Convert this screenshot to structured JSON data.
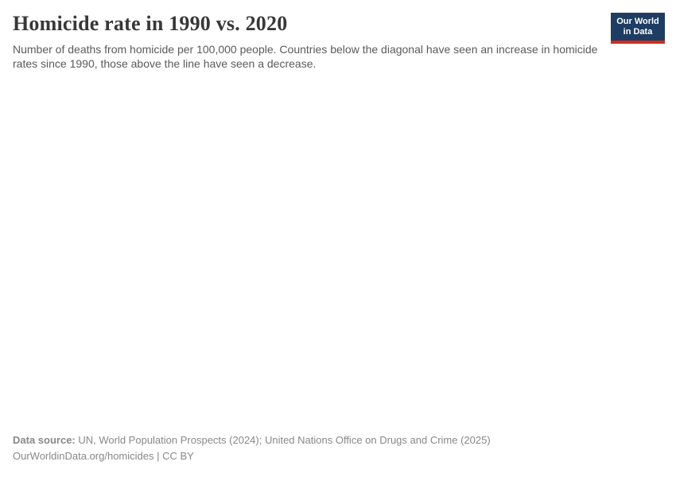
{
  "header": {
    "title": "Homicide rate in 1990 vs. 2020",
    "subtitle": "Number of deaths from homicide per 100,000 people. Countries below the diagonal have seen an increase in homicide rates since 1990, those above the line have seen a decrease.",
    "logo": {
      "line1": "Our World",
      "line2": "in Data"
    }
  },
  "chart_data": {
    "type": "scatter",
    "title": "Homicide rate in 1990 vs. 2020",
    "subtitle": "Number of deaths from homicide per 100,000 people. Countries below the diagonal have seen an increase in homicide rates since 1990, those above the line have seen a decrease.",
    "xlabel": "",
    "ylabel": "",
    "series": [],
    "axes_visible": false,
    "note": "Plot area is blank in the screenshot — no axes, gridlines, or data points are rendered."
  },
  "footer": {
    "data_source_label": "Data source:",
    "data_source_text": " UN, World Population Prospects (2024); United Nations Office on Drugs and Crime (2025)",
    "license_line": "OurWorldinData.org/homicides | CC BY"
  },
  "colors": {
    "page_bg": "#ffffff",
    "title": "#383838",
    "subtitle": "#5b5b5b",
    "footer": "#888888",
    "logo_bg": "#1d3d63",
    "logo_bar": "#cf2d23"
  }
}
